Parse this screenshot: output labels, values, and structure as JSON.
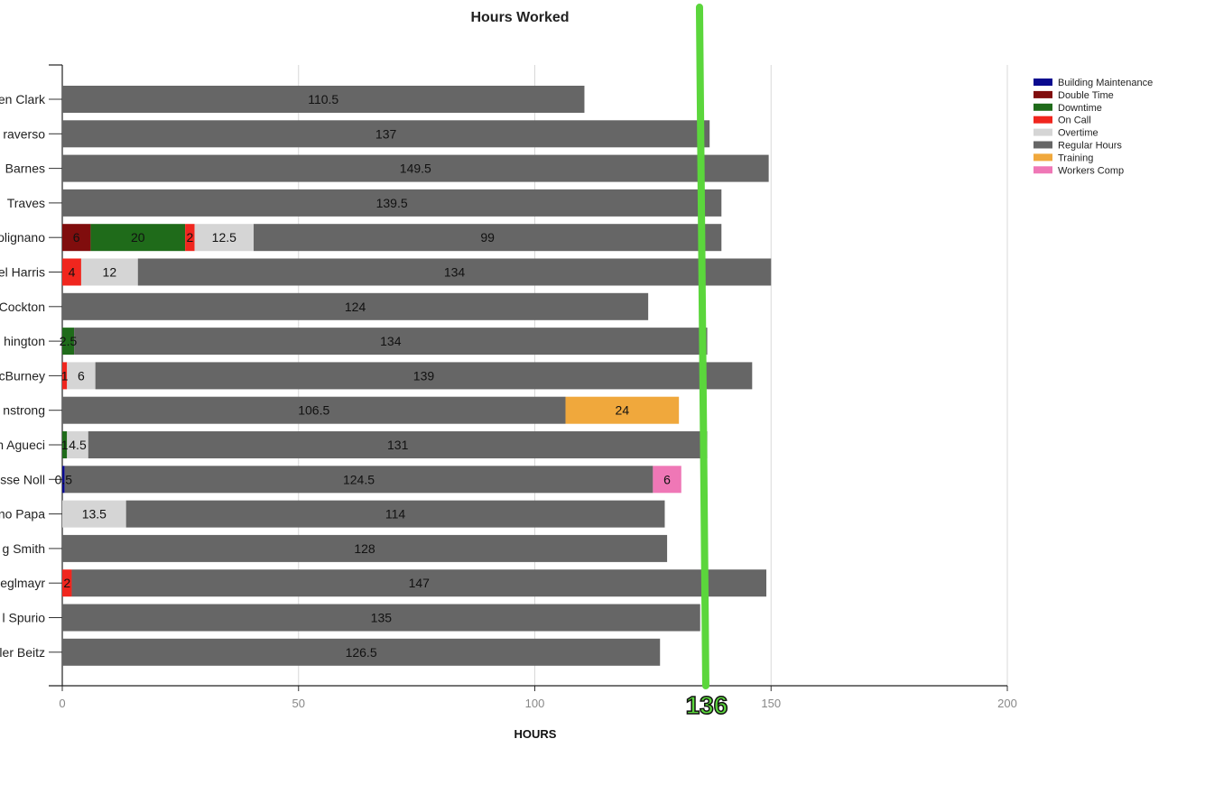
{
  "chart_data": {
    "type": "bar",
    "orientation": "horizontal",
    "stacked": true,
    "title": "Hours Worked",
    "xlabel": "HOURS",
    "ylabel": "",
    "xlim": [
      0,
      200
    ],
    "x_ticks": [
      0,
      50,
      100,
      150,
      200
    ],
    "grid": "vertical",
    "legend_position": "top-right",
    "categories": [
      "en Clark",
      "raverso",
      "Barnes",
      "Traves",
      "olignano",
      "el Harris",
      "Cockton",
      "hington",
      "cBurney",
      "nstrong",
      "n Agueci",
      "sse Noll",
      "no Papa",
      "g Smith",
      "eglmayr",
      "l Spurio",
      "ler Beitz"
    ],
    "series": [
      {
        "name": "Building Maintenance",
        "color": "#0a0a8f",
        "values": [
          0,
          0,
          0,
          0,
          0,
          0,
          0,
          0,
          0,
          0,
          0,
          0.5,
          0,
          0,
          0,
          0,
          0
        ]
      },
      {
        "name": "Double Time",
        "color": "#800d0d",
        "values": [
          0,
          0,
          0,
          0,
          6,
          0,
          0,
          0,
          0,
          0,
          0,
          0,
          0,
          0,
          0,
          0,
          0
        ]
      },
      {
        "name": "Downtime",
        "color": "#1f6b1a",
        "values": [
          0,
          0,
          0,
          0,
          20,
          0,
          0,
          2.5,
          0,
          0,
          1,
          0,
          0,
          0,
          0,
          0,
          0
        ]
      },
      {
        "name": "On Call",
        "color": "#f0261e",
        "values": [
          0,
          0,
          0,
          0,
          2,
          4,
          0,
          0,
          1,
          0,
          0,
          0,
          0,
          0,
          2,
          0,
          0
        ]
      },
      {
        "name": "Overtime",
        "color": "#d5d5d5",
        "values": [
          0,
          0,
          0,
          0,
          12.5,
          12,
          0,
          0,
          6,
          0,
          4.5,
          0,
          13.5,
          0,
          0,
          0,
          0
        ]
      },
      {
        "name": "Regular Hours",
        "color": "#666666",
        "values": [
          110.5,
          137,
          149.5,
          139.5,
          99,
          134,
          124,
          134,
          139,
          106.5,
          131,
          124.5,
          114,
          128,
          147,
          135,
          126.5
        ]
      },
      {
        "name": "Training",
        "color": "#f0a83c",
        "values": [
          0,
          0,
          0,
          0,
          0,
          0,
          0,
          0,
          0,
          24,
          0,
          0,
          0,
          0,
          0,
          0,
          0
        ]
      },
      {
        "name": "Workers Comp",
        "color": "#ef77b6",
        "values": [
          0,
          0,
          0,
          0,
          0,
          0,
          0,
          0,
          0,
          0,
          0,
          6,
          0,
          0,
          0,
          0,
          0
        ]
      }
    ],
    "annotations": [
      {
        "type": "vertical-marker-line",
        "x": 136,
        "label": "136",
        "color": "#5bd63c"
      }
    ]
  }
}
